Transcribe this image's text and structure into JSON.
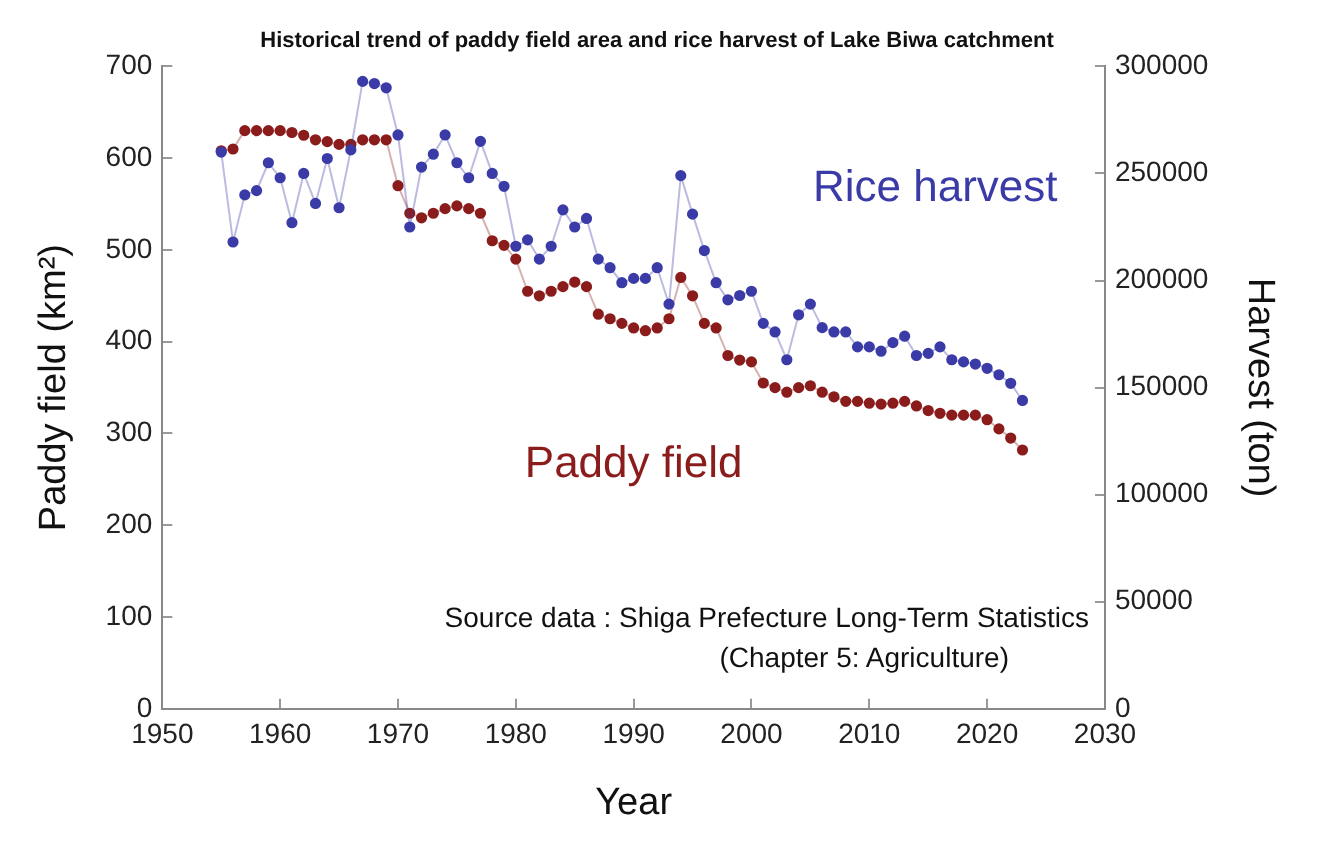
{
  "chart_data": {
    "type": "line",
    "title": "Historical trend of paddy field area and rice harvest of Lake Biwa catchment",
    "xlabel": "Year",
    "ylabel": "Paddy field (km²)",
    "y2label": "Harvest (ton)",
    "x": [
      1955,
      1956,
      1957,
      1958,
      1959,
      1960,
      1961,
      1962,
      1963,
      1964,
      1965,
      1966,
      1967,
      1968,
      1969,
      1970,
      1971,
      1972,
      1973,
      1974,
      1975,
      1976,
      1977,
      1978,
      1979,
      1980,
      1981,
      1982,
      1983,
      1984,
      1985,
      1986,
      1987,
      1988,
      1989,
      1990,
      1991,
      1992,
      1993,
      1994,
      1995,
      1996,
      1997,
      1998,
      1999,
      2000,
      2001,
      2002,
      2003,
      2004,
      2005,
      2006,
      2007,
      2008,
      2009,
      2010,
      2011,
      2012,
      2013,
      2014,
      2015,
      2016,
      2017,
      2018,
      2019,
      2020,
      2021,
      2022,
      2023
    ],
    "series": [
      {
        "name": "Rice harvest",
        "color": "#3b3ba8",
        "axis": "y2",
        "values": [
          260000,
          218000,
          240000,
          242000,
          255000,
          248000,
          227000,
          250000,
          236000,
          257000,
          234000,
          261000,
          293000,
          292000,
          290000,
          268000,
          225000,
          253000,
          259000,
          268000,
          255000,
          248000,
          265000,
          250000,
          244000,
          216000,
          219000,
          210000,
          216000,
          233000,
          225000,
          229000,
          210000,
          206000,
          199000,
          201000,
          201000,
          206000,
          189000,
          249000,
          231000,
          214000,
          199000,
          191000,
          193000,
          195000,
          180000,
          176000,
          163000,
          184000,
          189000,
          178000,
          176000,
          176000,
          169000,
          169000,
          167000,
          171000,
          174000,
          165000,
          166000,
          169000,
          163000,
          162000,
          161000,
          159000,
          156000,
          152000,
          144000
        ]
      },
      {
        "name": "Paddy field",
        "color": "#8b1c1c",
        "values": [
          608,
          610,
          630,
          630,
          630,
          630,
          628,
          625,
          620,
          618,
          615,
          615,
          620,
          620,
          620,
          570,
          540,
          535,
          540,
          545,
          548,
          545,
          540,
          510,
          505,
          490,
          455,
          450,
          455,
          460,
          465,
          460,
          430,
          425,
          420,
          415,
          412,
          415,
          425,
          470,
          450,
          420,
          415,
          385,
          380,
          378,
          355,
          350,
          345,
          350,
          352,
          345,
          340,
          335,
          335,
          333,
          332,
          333,
          335,
          330,
          325,
          322,
          320,
          320,
          320,
          315,
          305,
          295,
          282
        ]
      }
    ],
    "xlim": [
      1950,
      2030
    ],
    "xticks": [
      1950,
      1960,
      1970,
      1980,
      1990,
      2000,
      2010,
      2020,
      2030
    ],
    "ylim": [
      0,
      700
    ],
    "yticks": [
      0,
      100,
      200,
      300,
      400,
      500,
      600,
      700
    ],
    "y2lim": [
      0,
      300000
    ],
    "y2ticks": [
      0,
      50000,
      100000,
      150000,
      200000,
      250000,
      300000
    ],
    "marker": "circle",
    "line_style": "solid",
    "grid": false,
    "legend": false,
    "annotations": [
      "Source data : Shiga Prefecture Long-Term Statistics",
      "(Chapter 5: Agriculture)"
    ]
  }
}
